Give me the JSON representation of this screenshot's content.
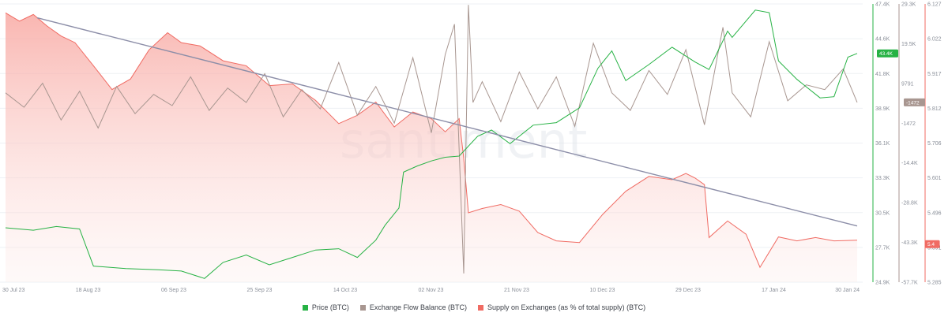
{
  "chart_data": {
    "type": "line",
    "watermark": "santiment",
    "x_ticks": [
      "30 Jul 23",
      "18 Aug 23",
      "06 Sep 23",
      "25 Sep 23",
      "14 Oct 23",
      "02 Nov 23",
      "21 Nov 23",
      "10 Dec 23",
      "29 Dec 23",
      "17 Jan 24",
      "30 Jan 24"
    ],
    "axes": {
      "price": {
        "ticks": [
          "47.4K",
          "44.6K",
          "41.8K",
          "38.9K",
          "36.1K",
          "33.3K",
          "30.5K",
          "27.7K",
          "24.9K"
        ],
        "ylim": [
          24900,
          47400
        ],
        "color": "#26b244"
      },
      "flow": {
        "ticks": [
          "29.3K",
          "19.5K",
          "9791",
          "-1472",
          "-14.4K",
          "-28.8K",
          "-43.3K",
          "-57.7K"
        ],
        "ylim": [
          -57700,
          29300
        ],
        "color": "#a89690"
      },
      "supply": {
        "ticks": [
          "6.127",
          "6.022",
          "5.917",
          "5.812",
          "5.706",
          "5.601",
          "5.496",
          "5.391",
          "5.285"
        ],
        "ylim": [
          5.285,
          6.127
        ],
        "color": "#f06b63"
      }
    },
    "badges": [
      {
        "series": "price",
        "label": "43.4K",
        "value": 43400,
        "color": "#26b244"
      },
      {
        "series": "flow",
        "label": "-1472",
        "value": -1472,
        "color": "#a89690"
      },
      {
        "series": "supply",
        "label": "5.4",
        "value": 5.4,
        "color": "#f06b63"
      }
    ],
    "trendline": {
      "x": [
        "2023-07-30",
        "2024-01-30"
      ],
      "supply": [
        6.085,
        5.455
      ],
      "color": "#8c8ea8"
    },
    "series": [
      {
        "name": "Price (BTC)",
        "axis": "price",
        "color": "#26b244",
        "x": [
          "2023-07-30",
          "2023-08-05",
          "2023-08-10",
          "2023-08-15",
          "2023-08-18",
          "2023-08-25",
          "2023-09-01",
          "2023-09-06",
          "2023-09-11",
          "2023-09-15",
          "2023-09-20",
          "2023-09-25",
          "2023-09-30",
          "2023-10-05",
          "2023-10-10",
          "2023-10-14",
          "2023-10-18",
          "2023-10-20",
          "2023-10-23",
          "2023-10-24",
          "2023-10-27",
          "2023-10-30",
          "2023-11-02",
          "2023-11-05",
          "2023-11-09",
          "2023-11-12",
          "2023-11-16",
          "2023-11-21",
          "2023-11-26",
          "2023-12-01",
          "2023-12-05",
          "2023-12-08",
          "2023-12-11",
          "2023-12-16",
          "2023-12-21",
          "2023-12-26",
          "2023-12-29",
          "2024-01-02",
          "2024-01-03",
          "2024-01-08",
          "2024-01-11",
          "2024-01-13",
          "2024-01-17",
          "2024-01-22",
          "2024-01-25",
          "2024-01-28",
          "2024-01-30"
        ],
        "values": [
          29300,
          29100,
          29400,
          29200,
          26200,
          26000,
          25900,
          25800,
          25200,
          26500,
          27100,
          26300,
          26900,
          27500,
          27600,
          26900,
          28300,
          29500,
          30900,
          33800,
          34300,
          34700,
          35000,
          35100,
          36700,
          37200,
          36100,
          37600,
          37800,
          39000,
          42200,
          43600,
          41200,
          42500,
          43900,
          42700,
          42100,
          45200,
          44700,
          46900,
          46700,
          42800,
          41300,
          39800,
          39900,
          43100,
          43400
        ]
      },
      {
        "name": "Exchange Flow Balance (BTC)",
        "axis": "flow",
        "color": "#a89690",
        "x": [
          "2023-07-30",
          "2023-08-03",
          "2023-08-07",
          "2023-08-11",
          "2023-08-15",
          "2023-08-19",
          "2023-08-23",
          "2023-08-27",
          "2023-08-31",
          "2023-09-04",
          "2023-09-08",
          "2023-09-12",
          "2023-09-16",
          "2023-09-20",
          "2023-09-24",
          "2023-09-28",
          "2023-10-02",
          "2023-10-06",
          "2023-10-10",
          "2023-10-14",
          "2023-10-18",
          "2023-10-22",
          "2023-10-26",
          "2023-10-30",
          "2023-11-02",
          "2023-11-04",
          "2023-11-06",
          "2023-11-07",
          "2023-11-08",
          "2023-11-10",
          "2023-11-14",
          "2023-11-18",
          "2023-11-22",
          "2023-11-26",
          "2023-11-30",
          "2023-12-04",
          "2023-12-08",
          "2023-12-12",
          "2023-12-16",
          "2023-12-20",
          "2023-12-24",
          "2023-12-28",
          "2024-01-01",
          "2024-01-03",
          "2024-01-07",
          "2024-01-11",
          "2024-01-15",
          "2024-01-19",
          "2024-01-23",
          "2024-01-27",
          "2024-01-30"
        ],
        "values": [
          1500,
          -3000,
          4500,
          -7000,
          2000,
          -9500,
          3500,
          -5000,
          1000,
          -2500,
          6500,
          -4000,
          3000,
          -1500,
          7500,
          -6000,
          2500,
          -3500,
          11000,
          -5500,
          3500,
          -8000,
          12500,
          -11000,
          13500,
          23000,
          -55000,
          29000,
          -1500,
          5000,
          -7500,
          8000,
          -3500,
          6500,
          -9000,
          17000,
          1500,
          -4000,
          8500,
          1000,
          15000,
          -8500,
          22000,
          1500,
          -6000,
          17500,
          -1000,
          4000,
          2500,
          9000,
          -1472
        ]
      },
      {
        "name": "Supply on Exchanges (as % of total supply) (BTC)",
        "axis": "supply",
        "color": "#f06b63",
        "x": [
          "2023-07-30",
          "2023-08-02",
          "2023-08-05",
          "2023-08-08",
          "2023-08-11",
          "2023-08-14",
          "2023-08-18",
          "2023-08-22",
          "2023-08-26",
          "2023-08-30",
          "2023-09-03",
          "2023-09-06",
          "2023-09-10",
          "2023-09-15",
          "2023-09-20",
          "2023-09-25",
          "2023-09-30",
          "2023-10-05",
          "2023-10-10",
          "2023-10-14",
          "2023-10-18",
          "2023-10-22",
          "2023-10-26",
          "2023-10-30",
          "2023-11-02",
          "2023-11-05",
          "2023-11-06",
          "2023-11-07",
          "2023-11-10",
          "2023-11-14",
          "2023-11-18",
          "2023-11-22",
          "2023-11-26",
          "2023-12-01",
          "2023-12-06",
          "2023-12-11",
          "2023-12-16",
          "2023-12-21",
          "2023-12-24",
          "2023-12-26",
          "2023-12-28",
          "2023-12-29",
          "2024-01-02",
          "2024-01-06",
          "2024-01-09",
          "2024-01-13",
          "2024-01-17",
          "2024-01-21",
          "2024-01-25",
          "2024-01-30"
        ],
        "values": [
          6.1,
          6.075,
          6.095,
          6.06,
          6.03,
          6.01,
          5.94,
          5.868,
          5.9,
          5.988,
          6.04,
          6.01,
          6.0,
          5.955,
          5.94,
          5.88,
          5.885,
          5.835,
          5.765,
          5.79,
          5.83,
          5.755,
          5.8,
          5.78,
          5.74,
          5.78,
          5.66,
          5.495,
          5.508,
          5.52,
          5.5,
          5.435,
          5.41,
          5.405,
          5.49,
          5.56,
          5.605,
          5.595,
          5.614,
          5.6,
          5.58,
          5.42,
          5.47,
          5.43,
          5.33,
          5.422,
          5.41,
          5.42,
          5.41,
          5.412
        ]
      }
    ]
  }
}
